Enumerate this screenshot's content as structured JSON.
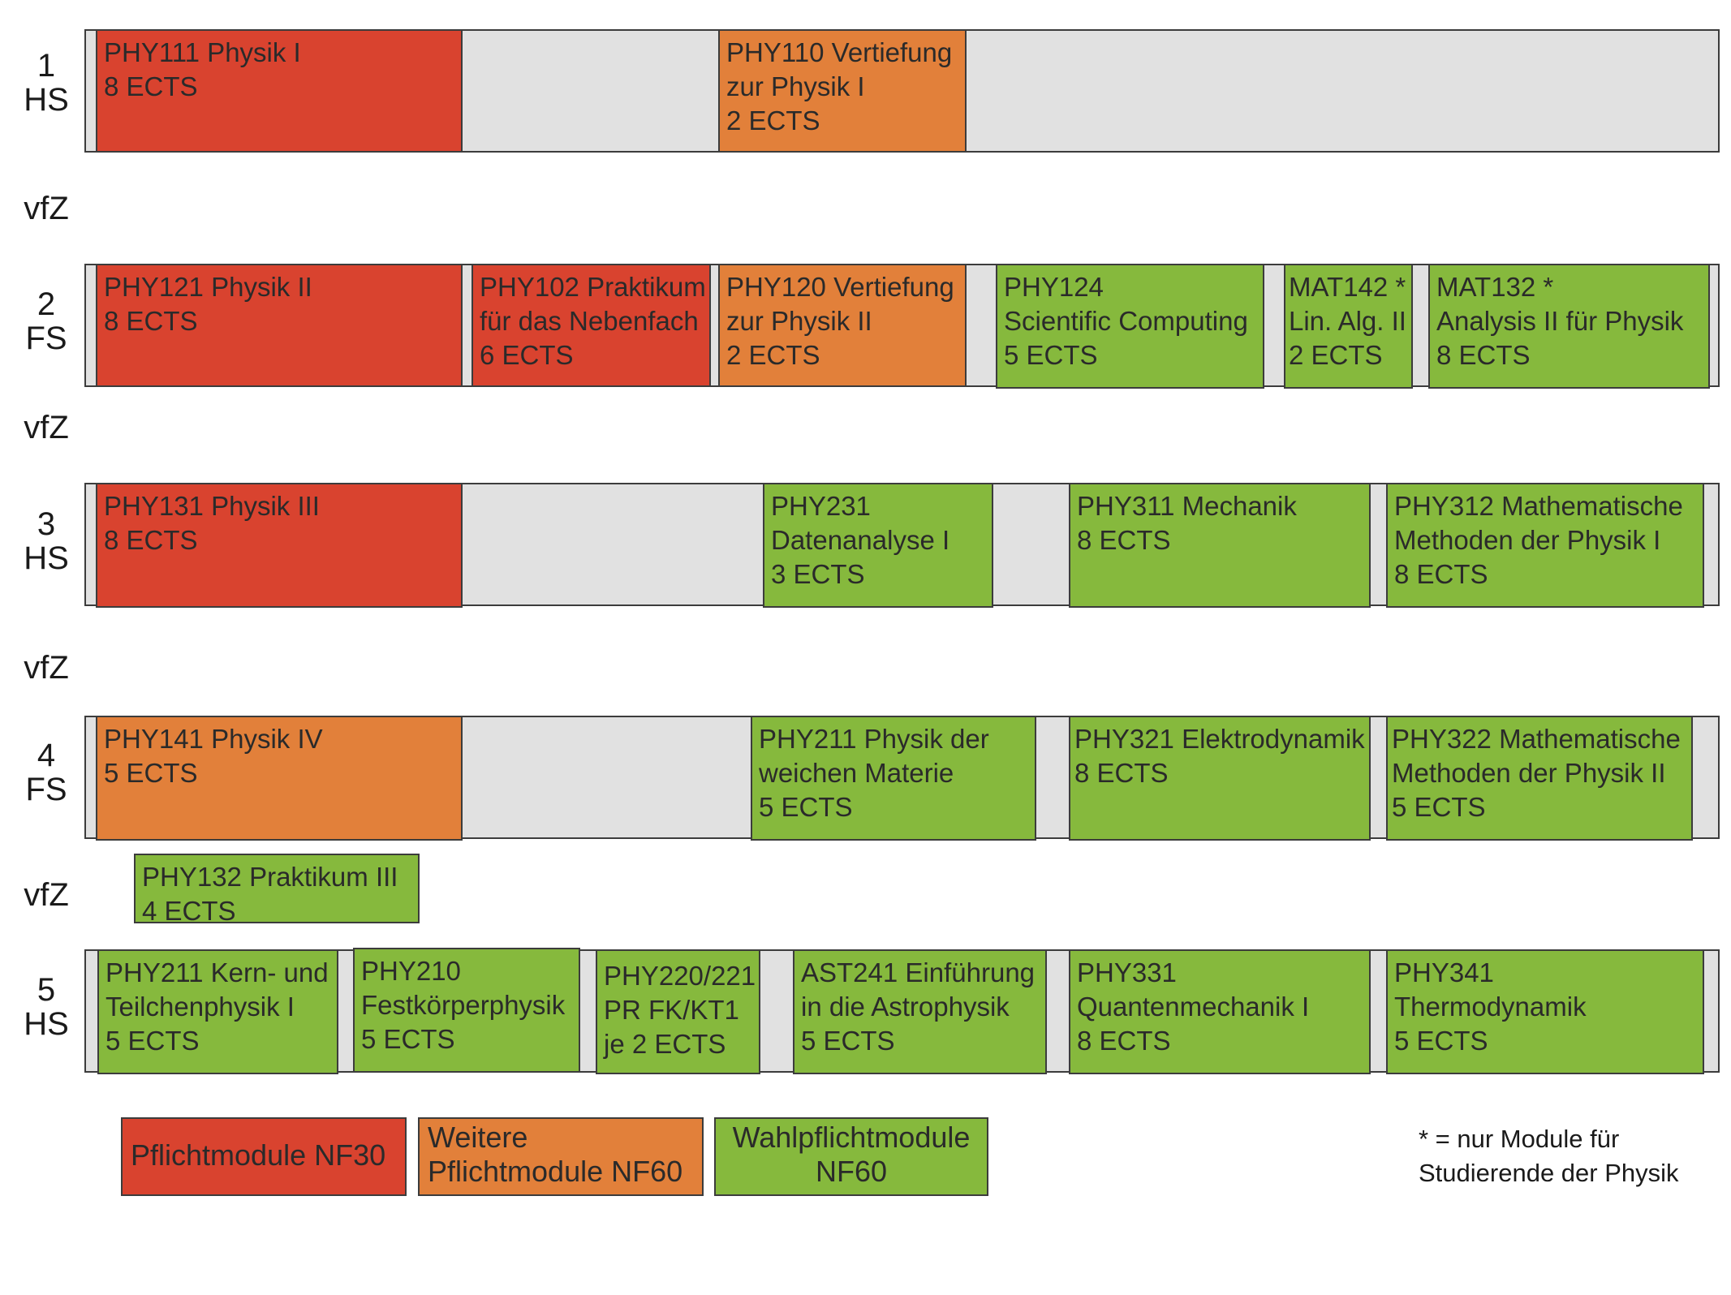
{
  "rows": [
    {
      "number": "1",
      "term": "HS"
    },
    {
      "number": "2",
      "term": "FS"
    },
    {
      "number": "3",
      "term": "HS"
    },
    {
      "number": "4",
      "term": "FS"
    },
    {
      "number": "5",
      "term": "HS"
    }
  ],
  "gap_label": "vfZ",
  "modules": {
    "phy111": {
      "title": "PHY111 Physik I",
      "ects": "8 ECTS"
    },
    "phy110": {
      "title": "PHY110 Vertiefung",
      "title2": "zur Physik I",
      "ects": "2 ECTS"
    },
    "phy121": {
      "title": "PHY121 Physik II",
      "ects": "8 ECTS"
    },
    "phy102": {
      "title": "PHY102 Praktikum",
      "title2": "für das Nebenfach",
      "ects": "6 ECTS"
    },
    "phy120": {
      "title": "PHY120 Vertiefung",
      "title2": "zur Physik II",
      "ects": "2 ECTS"
    },
    "phy124": {
      "title": "PHY124",
      "title2": "Scientific Computing",
      "ects": "5 ECTS"
    },
    "mat142": {
      "title": "MAT142 *",
      "title2": "Lin. Alg. II",
      "ects": "2 ECTS"
    },
    "mat132": {
      "title": "MAT132 *",
      "title2": "Analysis II für Physik",
      "ects": "8 ECTS"
    },
    "phy131": {
      "title": "PHY131 Physik III",
      "ects": "8 ECTS"
    },
    "phy231": {
      "title": "PHY231",
      "title2": "Datenanalyse I",
      "ects": "3 ECTS"
    },
    "phy311": {
      "title": "PHY311 Mechanik",
      "ects": "8 ECTS"
    },
    "phy312": {
      "title": "PHY312 Mathematische",
      "title2": "Methoden der Physik I",
      "ects": "8 ECTS"
    },
    "phy141": {
      "title": "PHY141 Physik IV",
      "ects": "5 ECTS"
    },
    "phy211a": {
      "title": "PHY211 Physik der",
      "title2": "weichen Materie",
      "ects": "5 ECTS"
    },
    "phy321": {
      "title": "PHY321 Elektrodynamik",
      "ects": "8 ECTS"
    },
    "phy322": {
      "title": "PHY322 Mathematische",
      "title2": "Methoden der Physik II",
      "ects": "5 ECTS"
    },
    "phy132": {
      "title": "PHY132 Praktikum III",
      "ects": "4 ECTS"
    },
    "phy211b": {
      "title": "PHY211 Kern- und",
      "title2": "Teilchenphysik I",
      "ects": "5 ECTS"
    },
    "phy210": {
      "title": "PHY210",
      "title2": "Festkörperphysik",
      "ects": "5 ECTS"
    },
    "phy220": {
      "title": "PHY220/221",
      "title2": "PR FK/KT1",
      "ects": "je 2 ECTS"
    },
    "ast241": {
      "title": "AST241 Einführung",
      "title2": "in die Astrophysik",
      "ects": "5 ECTS"
    },
    "phy331": {
      "title": "PHY331",
      "title2": "Quantenmechanik I",
      "ects": "8 ECTS"
    },
    "phy341": {
      "title": "PHY341",
      "title2": "Thermodynamik",
      "ects": "5 ECTS"
    }
  },
  "legend": {
    "mandatory_nf30": "Pflichtmodule NF30",
    "further_line1": "Weitere",
    "further_line2": "Pflichtmodule NF60",
    "elective_line1": "Wahlpflichtmodule",
    "elective_line2": "NF60"
  },
  "note": {
    "line1": "* = nur Module für",
    "line2": "Studierende der Physik"
  },
  "colors": {
    "mandatory_nf30": "#d9432f",
    "further_mandatory_nf60": "#e2803a",
    "elective_nf60": "#86b93d",
    "band_background": "#e1e1e1"
  }
}
